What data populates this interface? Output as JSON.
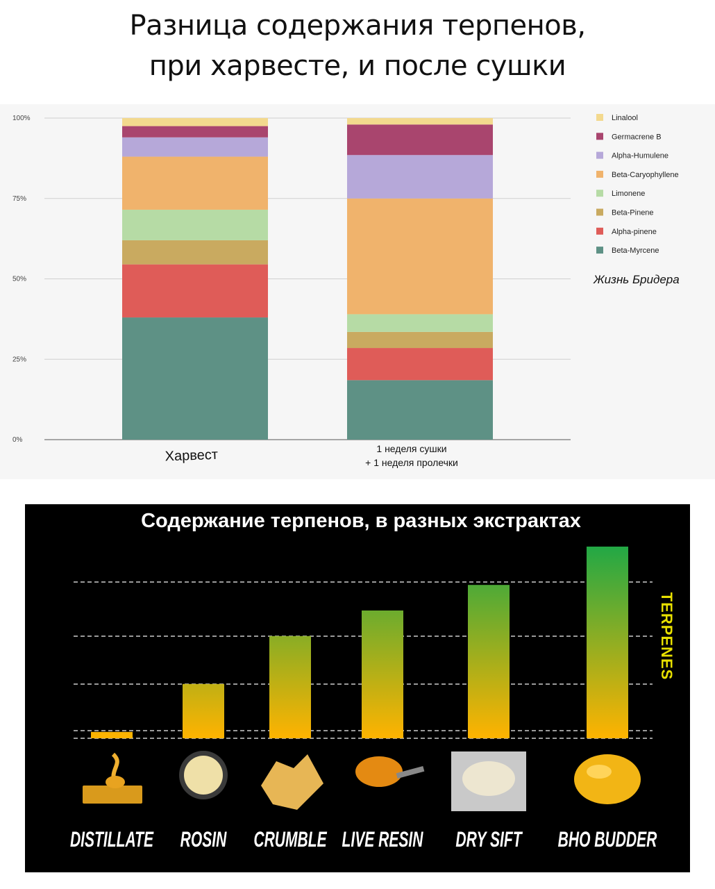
{
  "header": {
    "title_line1": "Разница содержания терпенов,",
    "title_line2": "при харвесте, и после сушки"
  },
  "chart_data": [
    {
      "type": "bar",
      "stacked": true,
      "categories": [
        "Харвест",
        "1 неделя сушки + 1 неделя пролечки"
      ],
      "category_label_lines": [
        [
          "Харвест"
        ],
        [
          "1 неделя сушки",
          "+ 1 неделя пролечки"
        ]
      ],
      "yticks": [
        "0%",
        "25%",
        "50%",
        "75%",
        "100%"
      ],
      "ylim": [
        0,
        100
      ],
      "grid": true,
      "legend_position": "right",
      "annotation": "Жизнь Бридера",
      "series": [
        {
          "name": "Beta-Myrcene",
          "color": "#5e9185",
          "values": [
            38,
            18.5
          ]
        },
        {
          "name": "Alpha-pinene",
          "color": "#df5c58",
          "values": [
            16.5,
            10
          ]
        },
        {
          "name": "Beta-Pinene",
          "color": "#c9aa60",
          "values": [
            7.5,
            5
          ]
        },
        {
          "name": "Limonene",
          "color": "#b6dba5",
          "values": [
            9.5,
            5.5
          ]
        },
        {
          "name": "Beta-Caryophyllene",
          "color": "#f0b36c",
          "values": [
            16.5,
            36
          ]
        },
        {
          "name": "Alpha-Humulene",
          "color": "#b6a8d9",
          "values": [
            6,
            13.5
          ]
        },
        {
          "name": "Germacrene B",
          "color": "#a9456e",
          "values": [
            3.5,
            9.5
          ]
        },
        {
          "name": "Linalool",
          "color": "#f3d98e",
          "values": [
            2.5,
            2
          ]
        }
      ]
    },
    {
      "type": "bar",
      "title": "Содержание терпенов, в разных экстрактах",
      "categories": [
        "DISTILLATE",
        "ROSIN",
        "CRUMBLE",
        "LIVE RESIN",
        "DRY SIFT",
        "BHO BUDDER"
      ],
      "values": [
        2,
        17,
        32,
        40,
        48,
        60
      ],
      "ylim": [
        0,
        60
      ],
      "ylabel": "TERPENES",
      "grid": true,
      "colors": {
        "low": "#ffb300",
        "high": "#22a845",
        "grid": "#9a9a9a",
        "axis_label": "#e8e000",
        "background": "#000000"
      }
    }
  ]
}
